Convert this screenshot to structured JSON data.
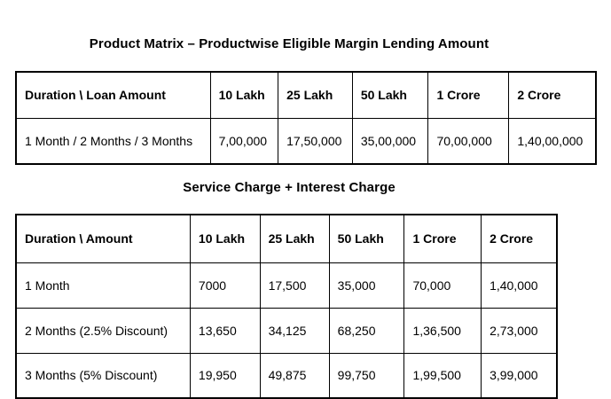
{
  "page": {
    "background_color": "#ffffff",
    "text_color": "#000000",
    "border_color": "#000000"
  },
  "table1": {
    "title": "Product Matrix – Productwise Eligible Margin Lending Amount",
    "headers": [
      "Duration \\ Loan Amount",
      "10 Lakh",
      "25 Lakh",
      "50 Lakh",
      "1 Crore",
      "2 Crore"
    ],
    "rows": [
      [
        "1 Month / 2 Months / 3 Months",
        "7,00,000",
        "17,50,000",
        "35,00,000",
        "70,00,000",
        "1,40,00,000"
      ]
    ]
  },
  "table2": {
    "title": "Service Charge + Interest Charge",
    "headers": [
      "Duration \\ Amount",
      "10 Lakh",
      "25 Lakh",
      "50 Lakh",
      "1 Crore",
      "2 Crore"
    ],
    "rows": [
      [
        "1 Month",
        "7000",
        "17,500",
        "35,000",
        "70,000",
        "1,40,000"
      ],
      [
        "2 Months (2.5% Discount)",
        "13,650",
        "34,125",
        "68,250",
        "1,36,500",
        "2,73,000"
      ],
      [
        "3 Months (5% Discount)",
        "19,950",
        "49,875",
        "99,750",
        "1,99,500",
        "3,99,000"
      ]
    ]
  }
}
